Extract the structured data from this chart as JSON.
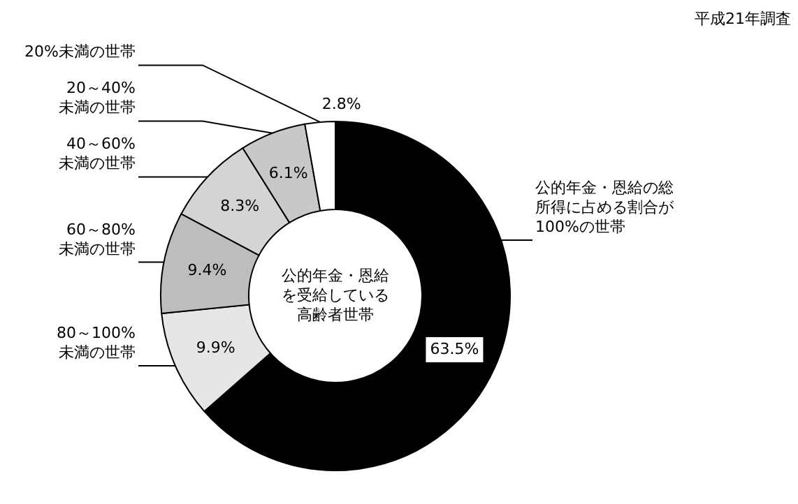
{
  "chart_data": {
    "type": "donut",
    "categories": [
      "公的年金・恩給の総所得に占める割合が100%の世帯",
      "80～100%\n未満の世帯",
      "60～80%\n未満の世帯",
      "40～60%\n未満の世帯",
      "20～40%\n未満の世帯",
      "20%未満の世帯"
    ],
    "values": [
      63.5,
      9.9,
      9.4,
      8.3,
      6.1,
      2.8
    ],
    "value_labels": [
      "63.5%",
      "9.9%",
      "9.4%",
      "8.3%",
      "6.1%",
      "2.8%"
    ],
    "colors": [
      "#000000",
      "#e6e6e6",
      "#bdbdbd",
      "#d4d4d4",
      "#c8c8c8",
      "#ffffff"
    ],
    "annotations": [
      "平成21年調査",
      "公的年金・恩給を受給している高齢者世帯"
    ]
  }
}
